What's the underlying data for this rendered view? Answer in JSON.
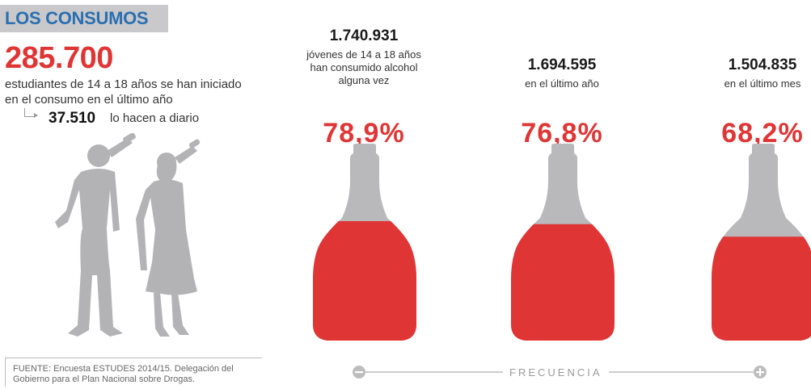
{
  "header": {
    "title": "LOS CONSUMOS"
  },
  "summary": {
    "big_number": "285.700",
    "description": "estudiantes de 14 a 18 años se han iniciado en el consumo en el último año",
    "daily_value": "37.510",
    "daily_label": "lo hacen a diario"
  },
  "source": "FUENTE: Encuesta ESTUDES 2014/15. Delegación del Gobierno para el Plan Nacional sobre Drogas.",
  "axis": {
    "label": "FRECUENCIA",
    "minus_icon": "minus-icon",
    "plus_icon": "plus-icon"
  },
  "colors": {
    "accent_red": "#e03535",
    "title_blue": "#2a6fb0",
    "bottle_grey": "#b9b9bb",
    "silhouette_grey": "#b3b3b5"
  },
  "chart_data": {
    "type": "bar",
    "categories": [
      "alcohol alguna vez",
      "en el último año",
      "en el último mes"
    ],
    "series": [
      {
        "values": [
          78.9,
          76.8,
          68.2
        ]
      }
    ],
    "counts": [
      "1.740.931",
      "1.694.595",
      "1.504.835"
    ],
    "percent_labels": [
      "78,9%",
      "76,8%",
      "68,2%"
    ],
    "descriptions": [
      "jóvenes de 14 a 18 años han consumido alcohol alguna vez",
      "en el último año",
      "en el último mes"
    ],
    "ylim": [
      0,
      100
    ]
  }
}
